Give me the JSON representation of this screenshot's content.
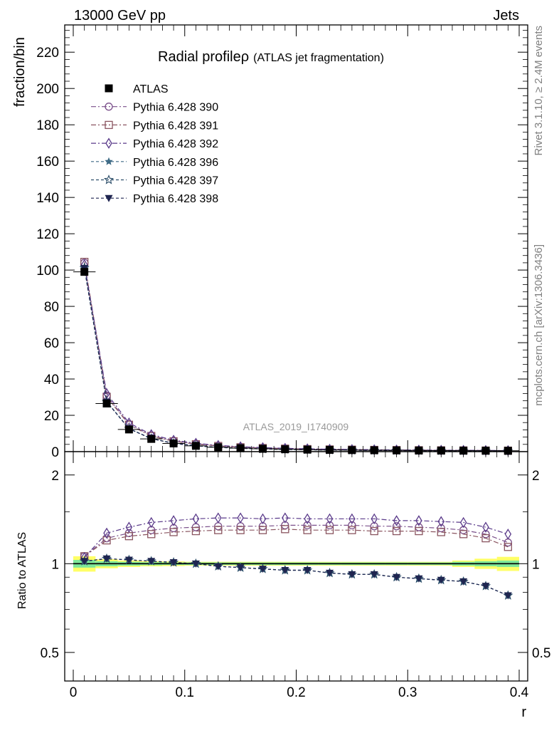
{
  "header": {
    "left": "13000 GeV pp",
    "right": "Jets"
  },
  "side_text": {
    "top": "Rivet 3.1.10, ≥ 2.4M events",
    "bottom": "mcplots.cern.ch [arXiv:1306.3436]"
  },
  "chart_data": [
    {
      "type": "line",
      "title": "Radial profile",
      "title_symbol": "ρ",
      "subtitle": "(ATLAS jet fragmentation)",
      "ylabel": "fraction/bin",
      "watermark": "ATLAS_2019_I1740909",
      "xlim": [
        0,
        0.4
      ],
      "ylim": [
        0,
        235
      ],
      "yticks": [
        0,
        20,
        40,
        60,
        80,
        100,
        120,
        140,
        160,
        180,
        200,
        220
      ],
      "x": [
        0.01,
        0.03,
        0.05,
        0.07,
        0.09,
        0.11,
        0.13,
        0.15,
        0.17,
        0.19,
        0.21,
        0.23,
        0.25,
        0.27,
        0.29,
        0.31,
        0.33,
        0.35,
        0.37,
        0.39
      ],
      "series": [
        {
          "name": "ATLAS",
          "color": "#000000",
          "marker": "square-filled",
          "dash": "none",
          "values": [
            99,
            26.5,
            12.2,
            7.0,
            4.5,
            3.2,
            2.4,
            1.9,
            1.55,
            1.3,
            1.1,
            0.95,
            0.85,
            0.75,
            0.68,
            0.62,
            0.57,
            0.53,
            0.5,
            0.47
          ]
        },
        {
          "name": "Pythia 6.428 390",
          "color": "#7a4f8a",
          "marker": "circle-open",
          "dash": "7,3,2,3",
          "values": [
            104,
            30.8,
            15.1,
            8.9,
            5.9,
            4.3,
            3.2,
            2.5,
            2.05,
            1.72,
            1.46,
            1.26,
            1.13,
            0.99,
            0.9,
            0.81,
            0.74,
            0.68,
            0.62,
            0.55
          ]
        },
        {
          "name": "Pythia 6.428 391",
          "color": "#8a5560",
          "marker": "square-open",
          "dash": "7,3,2,3",
          "values": [
            104.5,
            30.2,
            14.8,
            8.6,
            5.7,
            4.1,
            3.1,
            2.4,
            1.97,
            1.66,
            1.4,
            1.21,
            1.08,
            0.95,
            0.86,
            0.78,
            0.72,
            0.66,
            0.6,
            0.53
          ]
        },
        {
          "name": "Pythia 6.428 392",
          "color": "#5a3a8a",
          "marker": "diamond-open",
          "dash": "7,3,2,3",
          "values": [
            103,
            32.0,
            15.8,
            9.4,
            6.3,
            4.6,
            3.45,
            2.7,
            2.2,
            1.84,
            1.56,
            1.35,
            1.2,
            1.06,
            0.96,
            0.87,
            0.79,
            0.73,
            0.67,
            0.6
          ]
        },
        {
          "name": "Pythia 6.428 396",
          "color": "#3d6a85",
          "marker": "star-filled",
          "dash": "4,3",
          "values": [
            101.5,
            27.6,
            12.7,
            7.2,
            4.6,
            3.2,
            2.37,
            1.85,
            1.49,
            1.24,
            1.04,
            0.89,
            0.78,
            0.69,
            0.61,
            0.55,
            0.5,
            0.46,
            0.42,
            0.37
          ]
        },
        {
          "name": "Pythia 6.428 397",
          "color": "#2d4f6a",
          "marker": "star-open",
          "dash": "4,3",
          "values": [
            101.2,
            27.5,
            12.6,
            7.2,
            4.6,
            3.2,
            2.36,
            1.84,
            1.48,
            1.23,
            1.04,
            0.89,
            0.78,
            0.69,
            0.61,
            0.55,
            0.5,
            0.46,
            0.42,
            0.37
          ]
        },
        {
          "name": "Pythia 6.428 398",
          "color": "#1f2550",
          "marker": "triangle-down-filled",
          "dash": "4,3",
          "values": [
            101.0,
            27.4,
            12.6,
            7.1,
            4.55,
            3.18,
            2.35,
            1.83,
            1.48,
            1.22,
            1.03,
            0.88,
            0.77,
            0.68,
            0.6,
            0.54,
            0.49,
            0.45,
            0.41,
            0.36
          ]
        }
      ]
    },
    {
      "type": "line",
      "ylabel": "Ratio to ATLAS",
      "xlabel": "r",
      "scale_y": "log",
      "xlim": [
        0,
        0.4
      ],
      "ylim": [
        0.4,
        2.4
      ],
      "yticks": [
        0.5,
        1,
        2
      ],
      "xticks": [
        0,
        0.1,
        0.2,
        0.3,
        0.4
      ],
      "x": [
        0.01,
        0.03,
        0.05,
        0.07,
        0.09,
        0.11,
        0.13,
        0.15,
        0.17,
        0.19,
        0.21,
        0.23,
        0.25,
        0.27,
        0.29,
        0.31,
        0.33,
        0.35,
        0.37,
        0.39
      ],
      "band_inner": [
        0.03,
        0.02,
        0.015,
        0.012,
        0.01,
        0.01,
        0.01,
        0.01,
        0.01,
        0.01,
        0.01,
        0.01,
        0.01,
        0.01,
        0.01,
        0.01,
        0.01,
        0.015,
        0.02,
        0.025
      ],
      "band_outer": [
        0.06,
        0.035,
        0.025,
        0.02,
        0.018,
        0.015,
        0.015,
        0.015,
        0.015,
        0.015,
        0.015,
        0.015,
        0.015,
        0.015,
        0.015,
        0.015,
        0.015,
        0.025,
        0.04,
        0.055
      ],
      "band_colors": {
        "inner": "#7ee89a",
        "outer": "#ffff66",
        "line": "#1e8c3a"
      },
      "series": [
        {
          "name": "Pythia 6.428 390",
          "values": [
            1.06,
            1.22,
            1.27,
            1.3,
            1.32,
            1.33,
            1.34,
            1.34,
            1.34,
            1.35,
            1.35,
            1.35,
            1.35,
            1.34,
            1.34,
            1.33,
            1.32,
            1.3,
            1.26,
            1.18
          ]
        },
        {
          "name": "Pythia 6.428 391",
          "values": [
            1.06,
            1.2,
            1.24,
            1.26,
            1.28,
            1.29,
            1.3,
            1.3,
            1.3,
            1.31,
            1.3,
            1.3,
            1.3,
            1.29,
            1.29,
            1.29,
            1.28,
            1.26,
            1.22,
            1.14
          ]
        },
        {
          "name": "Pythia 6.428 392",
          "values": [
            1.05,
            1.27,
            1.33,
            1.38,
            1.4,
            1.42,
            1.43,
            1.43,
            1.42,
            1.43,
            1.42,
            1.42,
            1.42,
            1.42,
            1.4,
            1.4,
            1.39,
            1.38,
            1.33,
            1.26
          ]
        },
        {
          "name": "Pythia 6.428 396",
          "values": [
            1.02,
            1.04,
            1.03,
            1.02,
            1.01,
            1.0,
            0.98,
            0.97,
            0.96,
            0.95,
            0.95,
            0.93,
            0.92,
            0.92,
            0.9,
            0.89,
            0.88,
            0.87,
            0.84,
            0.78
          ]
        },
        {
          "name": "Pythia 6.428 397",
          "values": [
            1.02,
            1.04,
            1.03,
            1.02,
            1.01,
            1.0,
            0.98,
            0.97,
            0.96,
            0.95,
            0.95,
            0.93,
            0.92,
            0.92,
            0.9,
            0.89,
            0.88,
            0.87,
            0.84,
            0.78
          ]
        },
        {
          "name": "Pythia 6.428 398",
          "values": [
            1.02,
            1.04,
            1.03,
            1.02,
            1.01,
            1.0,
            0.98,
            0.97,
            0.96,
            0.95,
            0.95,
            0.93,
            0.92,
            0.92,
            0.9,
            0.89,
            0.88,
            0.87,
            0.84,
            0.78
          ]
        }
      ]
    }
  ]
}
